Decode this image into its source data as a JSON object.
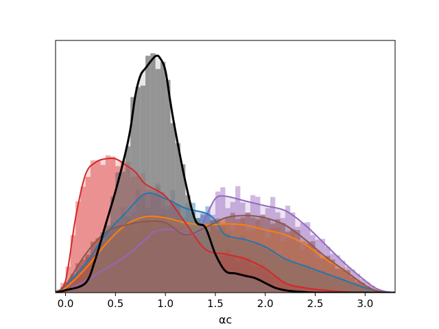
{
  "chart_data": {
    "type": "area",
    "title": "",
    "xlabel": "αc",
    "ylabel": "",
    "xlim": [
      -0.1,
      3.3
    ],
    "ylim": [
      0,
      1.0
    ],
    "x_ticks": [
      0.0,
      0.5,
      1.0,
      1.5,
      2.0,
      2.5,
      3.0
    ],
    "x_tick_labels": [
      "0.0",
      "0.5",
      "1.0",
      "1.5",
      "2.0",
      "2.5",
      "3.0"
    ],
    "y_ticks_visible": false,
    "grid": false,
    "legend": "none",
    "bin_width": 0.05,
    "series": [
      {
        "color": "#9467bd",
        "hist_alpha": 0.45,
        "x": [
          -0.1,
          0.0,
          0.2,
          0.4,
          0.6,
          0.8,
          0.9,
          1.1,
          1.3,
          1.4,
          1.5,
          1.6,
          1.8,
          2.0,
          2.2,
          2.4,
          2.6,
          2.8,
          3.0,
          3.1,
          3.2,
          3.3
        ],
        "kde": [
          0.0,
          0.01,
          0.05,
          0.1,
          0.15,
          0.22,
          0.255,
          0.26,
          0.24,
          0.31,
          0.39,
          0.4,
          0.38,
          0.36,
          0.34,
          0.28,
          0.2,
          0.12,
          0.05,
          0.02,
          0.005,
          0.0
        ]
      },
      {
        "color": "#1f77b4",
        "hist_alpha": 0.45,
        "x": [
          -0.1,
          0.0,
          0.2,
          0.4,
          0.6,
          0.8,
          1.0,
          1.2,
          1.4,
          1.5,
          1.6,
          1.8,
          2.0,
          2.2,
          2.4,
          2.6,
          2.8,
          3.0,
          3.1,
          3.2,
          3.3
        ],
        "kde": [
          0.0,
          0.03,
          0.12,
          0.24,
          0.33,
          0.41,
          0.39,
          0.35,
          0.33,
          0.3,
          0.24,
          0.22,
          0.19,
          0.14,
          0.11,
          0.08,
          0.05,
          0.02,
          0.01,
          0.0,
          0.0
        ]
      },
      {
        "color": "#ff7f0e",
        "hist_alpha": 0.45,
        "x": [
          -0.1,
          0.0,
          0.2,
          0.4,
          0.6,
          0.8,
          1.0,
          1.2,
          1.4,
          1.6,
          1.8,
          2.0,
          2.2,
          2.4,
          2.6,
          2.8,
          3.0,
          3.1,
          3.2,
          3.3
        ],
        "kde": [
          0.0,
          0.02,
          0.1,
          0.2,
          0.28,
          0.315,
          0.31,
          0.29,
          0.28,
          0.285,
          0.28,
          0.26,
          0.24,
          0.2,
          0.14,
          0.09,
          0.03,
          0.01,
          0.0,
          0.0
        ]
      },
      {
        "color": "#d62728",
        "hist_alpha": 0.4,
        "x": [
          -0.1,
          0.0,
          0.1,
          0.2,
          0.3,
          0.4,
          0.5,
          0.6,
          0.7,
          0.8,
          1.0,
          1.2,
          1.4,
          1.6,
          1.8,
          2.0,
          2.2,
          2.4,
          2.6,
          2.8,
          3.0,
          3.3
        ],
        "kde": [
          0.0,
          0.05,
          0.31,
          0.49,
          0.54,
          0.555,
          0.555,
          0.53,
          0.5,
          0.45,
          0.4,
          0.29,
          0.18,
          0.16,
          0.14,
          0.1,
          0.04,
          0.02,
          0.01,
          0.003,
          0.0,
          0.0
        ]
      },
      {
        "color": "#8c564b",
        "hist_alpha": 0.55,
        "x": [
          -0.1,
          0.0,
          0.2,
          0.4,
          0.6,
          0.8,
          1.0,
          1.2,
          1.4,
          1.6,
          1.8,
          2.0,
          2.2,
          2.4,
          2.6,
          2.8,
          3.0,
          3.1,
          3.2,
          3.3
        ],
        "kde": [
          0.0,
          0.03,
          0.16,
          0.25,
          0.28,
          0.295,
          0.29,
          0.24,
          0.27,
          0.31,
          0.32,
          0.31,
          0.28,
          0.22,
          0.15,
          0.09,
          0.03,
          0.01,
          0.0,
          0.0
        ]
      },
      {
        "color": "#000000",
        "hist_color": "#7f7f7f",
        "hist_alpha": 0.8,
        "x": [
          -0.1,
          0.0,
          0.2,
          0.3,
          0.4,
          0.5,
          0.6,
          0.65,
          0.7,
          0.75,
          0.8,
          0.9,
          0.95,
          1.0,
          1.05,
          1.1,
          1.2,
          1.3,
          1.4,
          1.5,
          1.6,
          1.7,
          1.8,
          1.9,
          2.0,
          2.1,
          2.2,
          2.3,
          2.5,
          2.7,
          3.3
        ],
        "kde": [
          0.0,
          0.01,
          0.04,
          0.14,
          0.28,
          0.42,
          0.58,
          0.68,
          0.82,
          0.9,
          0.93,
          0.98,
          0.97,
          0.92,
          0.79,
          0.67,
          0.46,
          0.3,
          0.27,
          0.16,
          0.09,
          0.08,
          0.07,
          0.06,
          0.04,
          0.02,
          0.01,
          0.005,
          0.0,
          0.0,
          0.0
        ]
      }
    ]
  }
}
